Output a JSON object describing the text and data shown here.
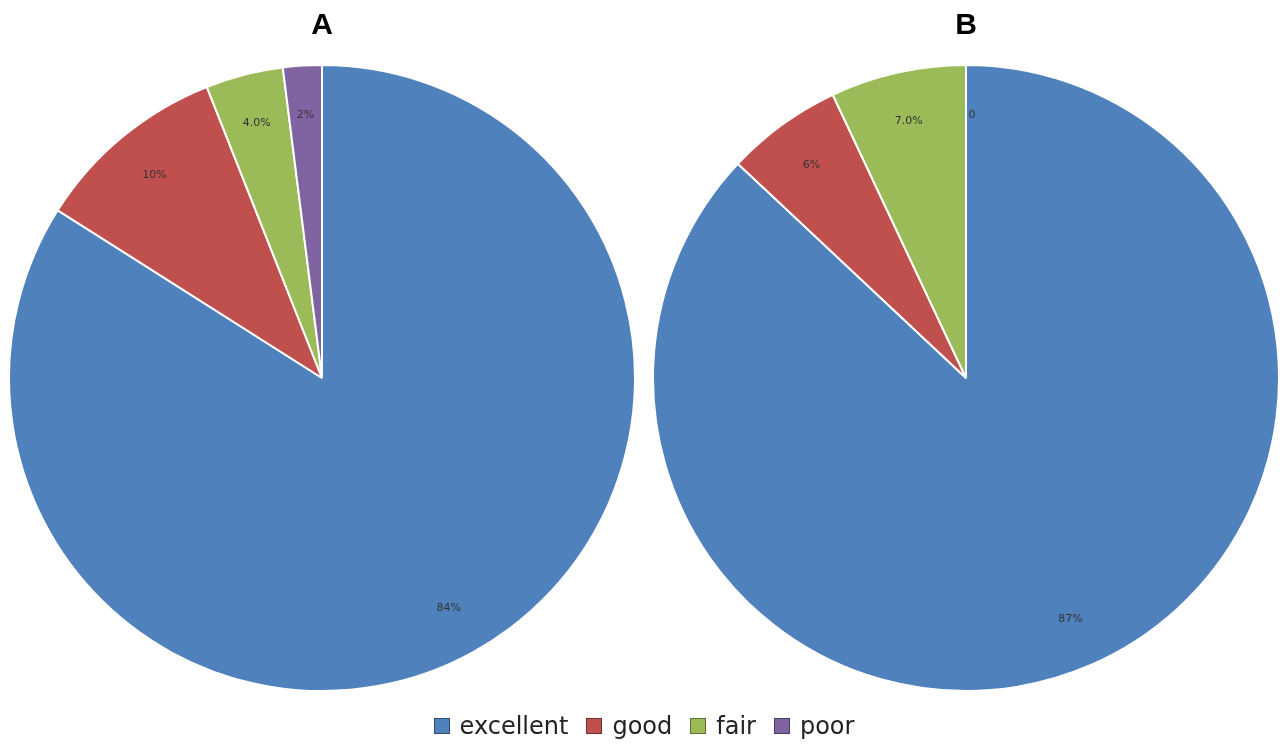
{
  "chart_data": [
    {
      "type": "pie",
      "title": "A",
      "categories": [
        "excellent",
        "good",
        "fair",
        "poor"
      ],
      "values": [
        84,
        10,
        4,
        2
      ],
      "value_labels": [
        "84%",
        "10%",
        "4.0%",
        "2%"
      ],
      "colors": [
        "#4f81bd",
        "#c0504d",
        "#9bbb59",
        "#8064a2"
      ],
      "legend": "bottom"
    },
    {
      "type": "pie",
      "title": "B",
      "categories": [
        null,
        null,
        null,
        null
      ],
      "values": [
        87,
        6,
        7,
        0
      ],
      "value_labels": [
        "87%",
        "6%",
        "7.0%",
        "0"
      ],
      "colors": [
        "#4f81bd",
        "#c0504d",
        "#9bbb59",
        "#8064a2"
      ]
    }
  ]
}
